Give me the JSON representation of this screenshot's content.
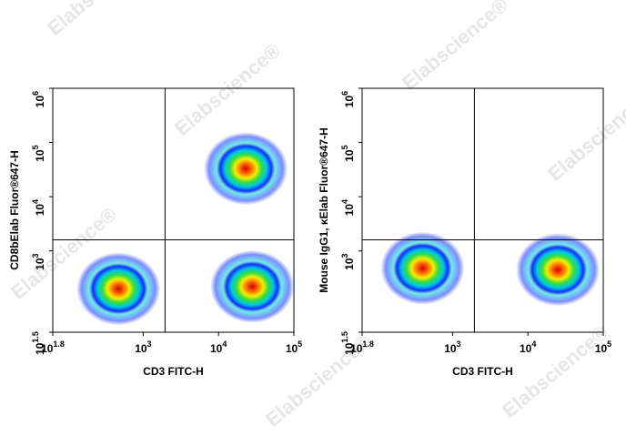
{
  "watermark": "Elabscience®",
  "chart_data": [
    {
      "type": "density",
      "xlabel": "CD3 FITC-H",
      "ylabel": "CD8bElab Fluor®647-H",
      "log_x": true,
      "log_y": true,
      "xlim": [
        63.0957,
        100000
      ],
      "ylim": [
        31.6228,
        1000000
      ],
      "xticks": [
        {
          "value": 63.0957,
          "label": "10",
          "exponent": "1.8"
        },
        {
          "value": 1000,
          "label": "10",
          "exponent": "3"
        },
        {
          "value": 10000,
          "label": "10",
          "exponent": "4"
        },
        {
          "value": 100000,
          "label": "10",
          "exponent": "5"
        }
      ],
      "yticks": [
        {
          "value": 31.6228,
          "label": "10",
          "exponent": "1.5"
        },
        {
          "value": 1000,
          "label": "10",
          "exponent": "3"
        },
        {
          "value": 10000,
          "label": "10",
          "exponent": "4"
        },
        {
          "value": 100000,
          "label": "10",
          "exponent": "5"
        },
        {
          "value": 1000000,
          "label": "10",
          "exponent": "6"
        }
      ],
      "gate": {
        "x": 1950,
        "y": 1600
      },
      "populations": {
        "x": [
          470,
          23000,
          28000
        ],
        "y": [
          200,
          33000,
          220
        ]
      }
    },
    {
      "type": "density",
      "xlabel": "CD3 FITC-H",
      "ylabel": "Mouse IgG1, κElab Fluor®647-H",
      "log_x": true,
      "log_y": true,
      "xlim": [
        63.0957,
        100000
      ],
      "ylim": [
        31.6228,
        1000000
      ],
      "xticks": [
        {
          "value": 63.0957,
          "label": "10",
          "exponent": "1.8"
        },
        {
          "value": 1000,
          "label": "10",
          "exponent": "3"
        },
        {
          "value": 10000,
          "label": "10",
          "exponent": "4"
        },
        {
          "value": 100000,
          "label": "10",
          "exponent": "5"
        }
      ],
      "yticks": [
        {
          "value": 31.6228,
          "label": "10",
          "exponent": "1.5"
        },
        {
          "value": 1000,
          "label": "10",
          "exponent": "3"
        },
        {
          "value": 10000,
          "label": "10",
          "exponent": "4"
        },
        {
          "value": 100000,
          "label": "10",
          "exponent": "5"
        },
        {
          "value": 1000000,
          "label": "10",
          "exponent": "6"
        }
      ],
      "gate": {
        "x": 1950,
        "y": 1600
      },
      "populations": {
        "x": [
          400,
          25000
        ],
        "y": [
          480,
          450
        ]
      }
    }
  ]
}
